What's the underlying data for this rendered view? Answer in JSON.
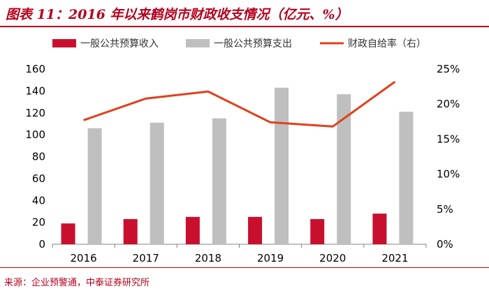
{
  "header": {
    "title": "图表 11：2016 年以来鹤岗市财政收支情况（亿元、%）"
  },
  "footer": {
    "source": "来源：企业预警通，中泰证券研究所"
  },
  "colors": {
    "brand": "#b5001c",
    "revenue": "#c8102e",
    "expenditure": "#bfbfbf",
    "ratio": "#e0401c"
  },
  "chart_data": {
    "type": "bar",
    "title": "2016 年以来鹤岗市财政收支情况（亿元、%）",
    "categories": [
      "2016",
      "2017",
      "2018",
      "2019",
      "2020",
      "2021"
    ],
    "series": [
      {
        "name": "一般公共预算收入",
        "type": "bar",
        "axis": "left",
        "values": [
          19,
          23,
          25,
          25,
          23,
          28
        ]
      },
      {
        "name": "一般公共预算支出",
        "type": "bar",
        "axis": "left",
        "values": [
          106,
          111,
          115,
          143,
          137,
          121
        ]
      },
      {
        "name": "财政自给率（右）",
        "type": "line",
        "axis": "right",
        "values": [
          17.7,
          20.8,
          21.8,
          17.4,
          16.8,
          23.2
        ]
      }
    ],
    "y_left": {
      "min": 0,
      "max": 160,
      "step": 20,
      "tick_labels": [
        "0",
        "20",
        "40",
        "60",
        "80",
        "100",
        "120",
        "140",
        "160"
      ]
    },
    "y_right": {
      "min": 0,
      "max": 25,
      "step": 5,
      "tick_labels": [
        "0%",
        "5%",
        "10%",
        "15%",
        "20%",
        "25%"
      ]
    },
    "grid": false,
    "legend_position": "top"
  }
}
